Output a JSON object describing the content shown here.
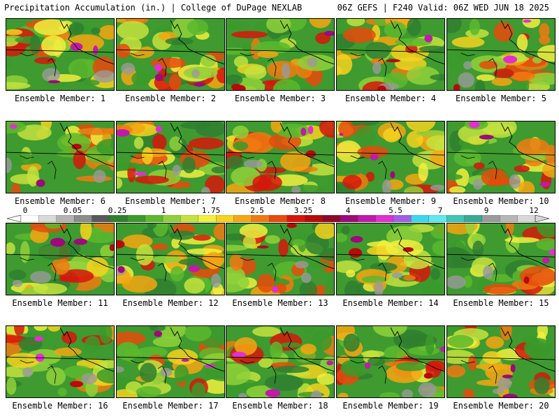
{
  "header": {
    "title": "Precipitation Accumulation (in.) | College of DuPage NEXLAB",
    "valid": "06Z GEFS | F240 Valid: 06Z WED JUN 18 2025"
  },
  "colorbar": {
    "labels": [
      "0",
      "0.05",
      "0.25",
      "1",
      "1.75",
      "2.5",
      "3.25",
      "4",
      "5.5",
      "7",
      "9",
      "12"
    ],
    "colors": [
      "#ffffff",
      "#d9d9d9",
      "#b3b3b3",
      "#8c8c8c",
      "#595959",
      "#2f7f2f",
      "#3a9a2a",
      "#5cb82d",
      "#8fd13a",
      "#c4e23d",
      "#f1f040",
      "#f5d21e",
      "#f5a612",
      "#f07a10",
      "#e84a0c",
      "#d6160a",
      "#b80a0a",
      "#8c0a28",
      "#9e0a7a",
      "#c01aa8",
      "#e030d0",
      "#a05ee8",
      "#3cd6f0",
      "#5fe8f0",
      "#40c4b8",
      "#38a898",
      "#9a9a9a",
      "#b6b6b6",
      "#d8d8d8"
    ]
  },
  "members": [
    {
      "label": "Ensemble Member: 1"
    },
    {
      "label": "Ensemble Member: 2"
    },
    {
      "label": "Ensemble Member: 3"
    },
    {
      "label": "Ensemble Member: 4"
    },
    {
      "label": "Ensemble Member: 5"
    },
    {
      "label": "Ensemble Member: 6"
    },
    {
      "label": "Ensemble Member: 7"
    },
    {
      "label": "Ensemble Member: 8"
    },
    {
      "label": "Ensemble Member: 9"
    },
    {
      "label": "Ensemble Member: 10"
    },
    {
      "label": "Ensemble Member: 11"
    },
    {
      "label": "Ensemble Member: 12"
    },
    {
      "label": "Ensemble Member: 13"
    },
    {
      "label": "Ensemble Member: 14"
    },
    {
      "label": "Ensemble Member: 15"
    },
    {
      "label": "Ensemble Member: 16"
    },
    {
      "label": "Ensemble Member: 17"
    },
    {
      "label": "Ensemble Member: 18"
    },
    {
      "label": "Ensemble Member: 19"
    },
    {
      "label": "Ensemble Member: 20"
    }
  ]
}
